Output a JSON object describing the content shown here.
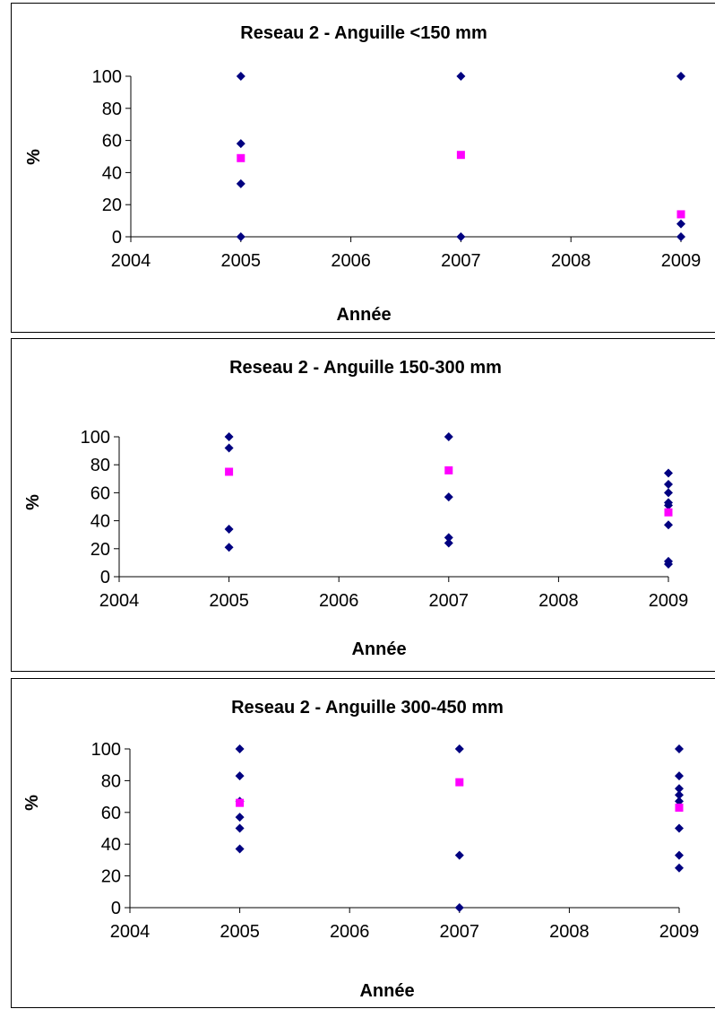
{
  "chart_data": [
    {
      "type": "scatter",
      "title": "Reseau 2 - Anguille <150 mm",
      "xlabel": "Année",
      "ylabel": "%",
      "xlim": [
        2004,
        2009
      ],
      "ylim": [
        0,
        100
      ],
      "xticks": [
        "2004",
        "2005",
        "2006",
        "2007",
        "2008",
        "2009"
      ],
      "yticks": [
        "0",
        "20",
        "40",
        "60",
        "80",
        "100"
      ],
      "grid": false,
      "legend": "none",
      "series": [
        {
          "marker": "diamond",
          "color": "#000080",
          "points": [
            {
              "x": 2005,
              "y": 100
            },
            {
              "x": 2005,
              "y": 58
            },
            {
              "x": 2005,
              "y": 33
            },
            {
              "x": 2005,
              "y": 0
            },
            {
              "x": 2007,
              "y": 100
            },
            {
              "x": 2007,
              "y": 0
            },
            {
              "x": 2009,
              "y": 100
            },
            {
              "x": 2009,
              "y": 8
            },
            {
              "x": 2009,
              "y": 0
            }
          ]
        },
        {
          "marker": "square",
          "color": "#ff00ff",
          "points": [
            {
              "x": 2005,
              "y": 49
            },
            {
              "x": 2007,
              "y": 51
            },
            {
              "x": 2009,
              "y": 14
            }
          ]
        }
      ]
    },
    {
      "type": "scatter",
      "title": "Reseau 2 - Anguille 150-300 mm",
      "xlabel": "Année",
      "ylabel": "%",
      "xlim": [
        2004,
        2009
      ],
      "ylim": [
        0,
        100
      ],
      "xticks": [
        "2004",
        "2005",
        "2006",
        "2007",
        "2008",
        "2009"
      ],
      "yticks": [
        "0",
        "20",
        "40",
        "60",
        "80",
        "100"
      ],
      "grid": false,
      "legend": "none",
      "series": [
        {
          "marker": "diamond",
          "color": "#000080",
          "points": [
            {
              "x": 2005,
              "y": 100
            },
            {
              "x": 2005,
              "y": 92
            },
            {
              "x": 2005,
              "y": 34
            },
            {
              "x": 2005,
              "y": 21
            },
            {
              "x": 2007,
              "y": 100
            },
            {
              "x": 2007,
              "y": 57
            },
            {
              "x": 2007,
              "y": 28
            },
            {
              "x": 2007,
              "y": 24
            },
            {
              "x": 2009,
              "y": 74
            },
            {
              "x": 2009,
              "y": 66
            },
            {
              "x": 2009,
              "y": 60
            },
            {
              "x": 2009,
              "y": 53
            },
            {
              "x": 2009,
              "y": 51
            },
            {
              "x": 2009,
              "y": 37
            },
            {
              "x": 2009,
              "y": 11
            },
            {
              "x": 2009,
              "y": 9
            }
          ]
        },
        {
          "marker": "square",
          "color": "#ff00ff",
          "points": [
            {
              "x": 2005,
              "y": 75
            },
            {
              "x": 2007,
              "y": 76
            },
            {
              "x": 2009,
              "y": 46
            }
          ]
        }
      ]
    },
    {
      "type": "scatter",
      "title": "Reseau 2 - Anguille 300-450 mm",
      "xlabel": "Année",
      "ylabel": "%",
      "xlim": [
        2004,
        2009
      ],
      "ylim": [
        0,
        100
      ],
      "xticks": [
        "2004",
        "2005",
        "2006",
        "2007",
        "2008",
        "2009"
      ],
      "yticks": [
        "0",
        "20",
        "40",
        "60",
        "80",
        "100"
      ],
      "grid": false,
      "legend": "none",
      "series": [
        {
          "marker": "diamond",
          "color": "#000080",
          "points": [
            {
              "x": 2005,
              "y": 100
            },
            {
              "x": 2005,
              "y": 83
            },
            {
              "x": 2005,
              "y": 67
            },
            {
              "x": 2005,
              "y": 57
            },
            {
              "x": 2005,
              "y": 50
            },
            {
              "x": 2005,
              "y": 37
            },
            {
              "x": 2007,
              "y": 100
            },
            {
              "x": 2007,
              "y": 33
            },
            {
              "x": 2007,
              "y": 0
            },
            {
              "x": 2009,
              "y": 100
            },
            {
              "x": 2009,
              "y": 83
            },
            {
              "x": 2009,
              "y": 75
            },
            {
              "x": 2009,
              "y": 71
            },
            {
              "x": 2009,
              "y": 67
            },
            {
              "x": 2009,
              "y": 50
            },
            {
              "x": 2009,
              "y": 33
            },
            {
              "x": 2009,
              "y": 25
            }
          ]
        },
        {
          "marker": "square",
          "color": "#ff00ff",
          "points": [
            {
              "x": 2005,
              "y": 66
            },
            {
              "x": 2007,
              "y": 79
            },
            {
              "x": 2009,
              "y": 63
            }
          ]
        }
      ]
    }
  ]
}
